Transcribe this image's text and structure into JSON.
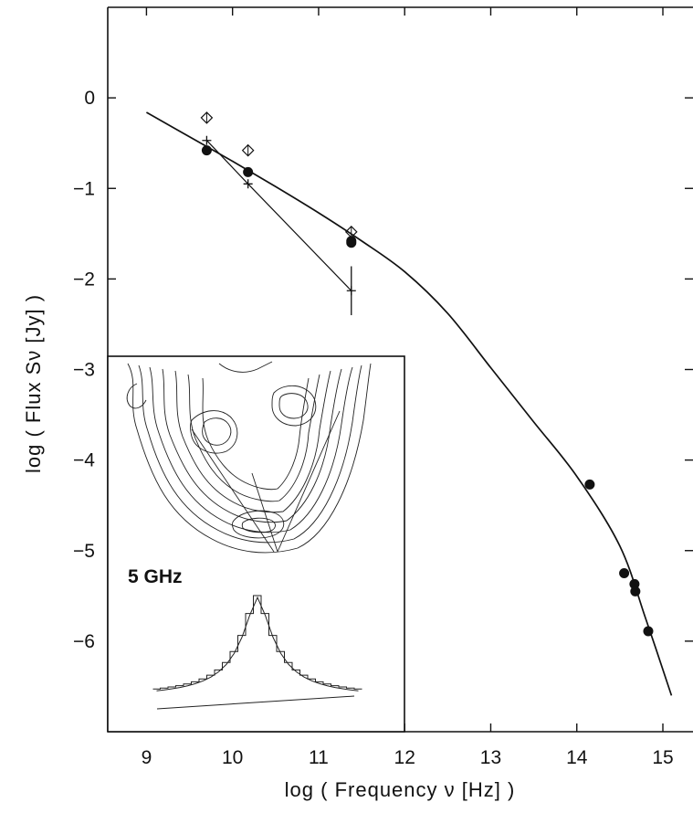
{
  "chart_data": {
    "type": "scatter",
    "title": "",
    "xlabel": "log ( Frequency ν [Hz] )",
    "ylabel": "log ( Flux Sν [Jy] )",
    "xlim": [
      8.55,
      15.35
    ],
    "ylim": [
      -7.0,
      1.0
    ],
    "x_ticks": [
      9,
      10,
      11,
      12,
      13,
      14,
      15
    ],
    "y_ticks": [
      0,
      -1,
      -2,
      -3,
      -4,
      -5,
      -6
    ],
    "x_tick_labels": [
      "9",
      "10",
      "11",
      "12",
      "13",
      "14",
      "15"
    ],
    "y_tick_labels": [
      "0",
      "−1",
      "−2",
      "−3",
      "−4",
      "−5",
      "−6"
    ],
    "grid": false,
    "series": [
      {
        "marker": "filled-circle",
        "x": [
          9.7,
          10.18,
          11.38,
          11.38,
          14.15,
          14.55,
          14.67,
          14.68,
          14.83
        ],
        "y": [
          -0.58,
          -0.82,
          -1.58,
          -1.6,
          -4.27,
          -5.25,
          -5.37,
          -5.45,
          -5.89
        ]
      },
      {
        "marker": "open-diamond",
        "x": [
          9.7,
          10.18,
          11.38
        ],
        "y": [
          -0.22,
          -0.58,
          -1.48
        ]
      },
      {
        "marker": "plus-line",
        "x": [
          9.7,
          10.18,
          11.38
        ],
        "y": [
          -0.47,
          -0.95,
          -2.13
        ],
        "yerr_low": [
          0,
          0,
          0.27
        ],
        "yerr_high": [
          0,
          0,
          0.27
        ]
      },
      {
        "marker": "fit-curve",
        "x": [
          9.0,
          9.5,
          10.0,
          10.5,
          11.0,
          11.5,
          12.0,
          12.5,
          13.0,
          13.5,
          14.0,
          14.5,
          14.8,
          15.1
        ],
        "y": [
          -0.16,
          -0.43,
          -0.7,
          -0.98,
          -1.27,
          -1.58,
          -1.92,
          -2.38,
          -2.98,
          -3.58,
          -4.18,
          -4.95,
          -5.75,
          -6.6
        ]
      }
    ],
    "inset": {
      "label": "5 GHz"
    }
  }
}
